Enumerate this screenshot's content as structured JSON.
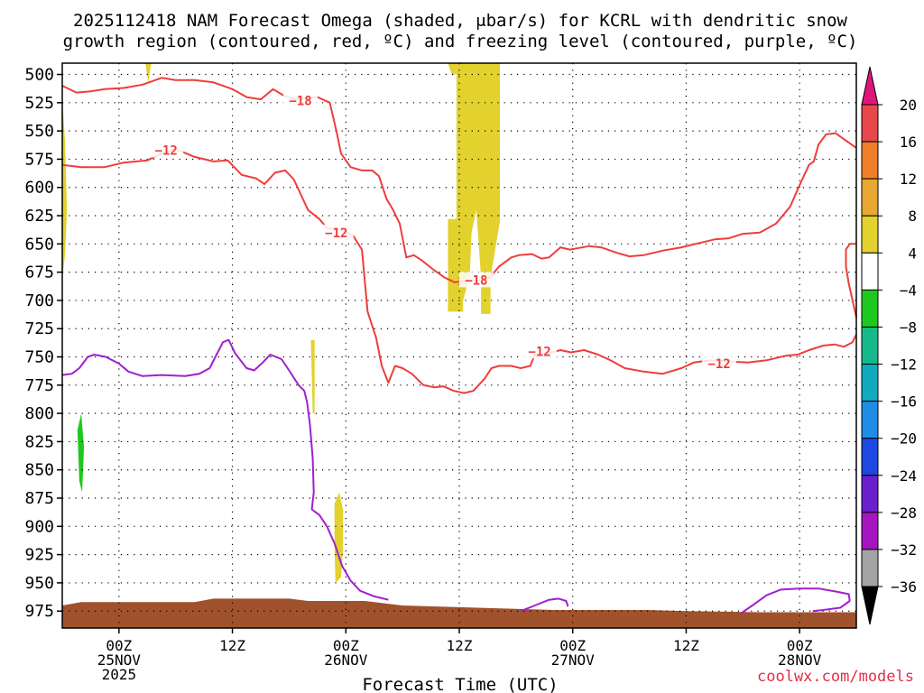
{
  "chart_data": {
    "type": "contour",
    "title_line1": "2025112418 NAM Forecast Omega (shaded, μbar/s) for KCRL with dendritic snow",
    "title_line2": "growth region (contoured, red, ºC) and freezing level (contoured, purple, ºC)",
    "xlabel": "Forecast Time (UTC)",
    "watermark": "coolwx.com/models",
    "x_unit": "hours since 2025112418",
    "xlim": [
      0,
      84
    ],
    "ylim": [
      490,
      990
    ],
    "y_ticks": [
      500,
      525,
      550,
      575,
      600,
      625,
      650,
      675,
      700,
      725,
      750,
      775,
      800,
      825,
      850,
      875,
      900,
      925,
      950,
      975
    ],
    "x_ticks": [
      {
        "x": 6,
        "lines": [
          "00Z",
          "25NOV",
          "2025"
        ]
      },
      {
        "x": 18,
        "lines": [
          "12Z"
        ]
      },
      {
        "x": 30,
        "lines": [
          "00Z",
          "26NOV"
        ]
      },
      {
        "x": 42,
        "lines": [
          "12Z"
        ]
      },
      {
        "x": 54,
        "lines": [
          "00Z",
          "27NOV"
        ]
      },
      {
        "x": 66,
        "lines": [
          "12Z"
        ]
      },
      {
        "x": 78,
        "lines": [
          "00Z",
          "28NOV"
        ]
      }
    ],
    "grid": true,
    "colorbar": {
      "labels": [
        "20",
        "16",
        "12",
        "8",
        "4",
        "−4",
        "−8",
        "−12",
        "−16",
        "−20",
        "−24",
        "−28",
        "−32",
        "−36"
      ],
      "colors": [
        "#e8484b",
        "#f07e2a",
        "#e6a833",
        "#e3d12e",
        "#ffffff",
        "#1fc81f",
        "#17b98b",
        "#12aabf",
        "#1f8ce6",
        "#1f48e0",
        "#6a1fcc",
        "#a515c0",
        "#a3a3a3"
      ],
      "top_arrow_color": "#e0157a",
      "bottom_arrow_color": "#000000"
    },
    "omega_shading": [
      {
        "color": "#e3d12e",
        "value": "4 to 8",
        "polygon": [
          [
            40.8,
            490
          ],
          [
            41.2,
            500
          ],
          [
            41.7,
            500
          ],
          [
            41.7,
            490
          ]
        ]
      },
      {
        "color": "#e3d12e",
        "value": "4 to 8",
        "polygon": [
          [
            41.7,
            490
          ],
          [
            41.7,
            628
          ],
          [
            40.8,
            628
          ],
          [
            40.8,
            710
          ],
          [
            42.4,
            710
          ],
          [
            42.4,
            700
          ],
          [
            42.8,
            688
          ],
          [
            43.1,
            680
          ],
          [
            43.3,
            640
          ],
          [
            43.8,
            620
          ],
          [
            44.3,
            680
          ],
          [
            44.3,
            712
          ],
          [
            45.3,
            712
          ],
          [
            45.3,
            680
          ],
          [
            46.3,
            630
          ],
          [
            46.3,
            490
          ]
        ]
      },
      {
        "color": "#e3d12e",
        "value": "4 to 8",
        "polygon": [
          [
            8.8,
            490
          ],
          [
            9.1,
            508
          ],
          [
            9.4,
            490
          ]
        ]
      },
      {
        "color": "#e3d12e",
        "value": "4 to 8",
        "polygon": [
          [
            0,
            520
          ],
          [
            0.3,
            560
          ],
          [
            0.5,
            620
          ],
          [
            0.3,
            660
          ],
          [
            0,
            680
          ]
        ]
      },
      {
        "color": "#e3d12e",
        "value": "4 to 8",
        "polygon": [
          [
            26.3,
            735
          ],
          [
            26.5,
            800
          ],
          [
            26.7,
            800
          ],
          [
            26.7,
            735
          ]
        ]
      },
      {
        "color": "#e3d12e",
        "value": "4 to 8",
        "polygon": [
          [
            28.8,
            880
          ],
          [
            29.3,
            870
          ],
          [
            29.7,
            885
          ],
          [
            29.7,
            920
          ],
          [
            29.5,
            945
          ],
          [
            28.9,
            950
          ],
          [
            28.8,
            920
          ]
        ]
      },
      {
        "color": "#1fc81f",
        "value": "-8 to -4",
        "polygon": [
          [
            1.6,
            815
          ],
          [
            2.0,
            800
          ],
          [
            2.3,
            830
          ],
          [
            2.1,
            870
          ],
          [
            1.8,
            860
          ]
        ]
      }
    ],
    "terrain": {
      "color": "#a0522d",
      "value": "below ground",
      "top_profile": [
        [
          0,
          970
        ],
        [
          2,
          967
        ],
        [
          14,
          967
        ],
        [
          16,
          964
        ],
        [
          24,
          964
        ],
        [
          26,
          966
        ],
        [
          32,
          966
        ],
        [
          36,
          970
        ],
        [
          44,
          972
        ],
        [
          52,
          974
        ],
        [
          56,
          974
        ],
        [
          62,
          974
        ],
        [
          66,
          975
        ],
        [
          74,
          976
        ],
        [
          84,
          976
        ]
      ]
    },
    "contours": [
      {
        "color": "#ee3d3d",
        "value": "-18 C",
        "label": "−18",
        "label_at": [
          25.2,
          523
        ],
        "points": [
          [
            0,
            510
          ],
          [
            1.5,
            516
          ],
          [
            3,
            515
          ],
          [
            4.5,
            513
          ],
          [
            6.5,
            512
          ],
          [
            8.5,
            509
          ],
          [
            10.5,
            503
          ],
          [
            12,
            505
          ],
          [
            14,
            505
          ],
          [
            16,
            507
          ],
          [
            18,
            513
          ],
          [
            19.5,
            520
          ],
          [
            21,
            522
          ],
          [
            22.3,
            513
          ],
          [
            23.5,
            519
          ],
          [
            24.5,
            522
          ],
          [
            27,
            520
          ],
          [
            28.3,
            525
          ],
          [
            29,
            550
          ],
          [
            29.5,
            570
          ],
          [
            30.5,
            582
          ],
          [
            31.7,
            585
          ],
          [
            32.8,
            585
          ],
          [
            33.5,
            590
          ],
          [
            34.3,
            610
          ],
          [
            35,
            620
          ],
          [
            35.7,
            632
          ],
          [
            36.4,
            662
          ],
          [
            37.2,
            660
          ],
          [
            38.1,
            665
          ],
          [
            39.3,
            673
          ],
          [
            40.5,
            680
          ],
          [
            41.5,
            684
          ],
          [
            42.3,
            683
          ],
          [
            43.5,
            683
          ],
          [
            44.5,
            682
          ],
          [
            45.2,
            680
          ],
          [
            46.2,
            670
          ],
          [
            47.5,
            662
          ],
          [
            48.3,
            660
          ],
          [
            49.7,
            659
          ],
          [
            50.7,
            663
          ],
          [
            51.5,
            662
          ],
          [
            52.7,
            653
          ],
          [
            53.7,
            655
          ],
          [
            55.7,
            652
          ],
          [
            57,
            653
          ],
          [
            58.7,
            658
          ],
          [
            60,
            661
          ],
          [
            61.5,
            660
          ],
          [
            63.5,
            656
          ],
          [
            65.5,
            653
          ],
          [
            67,
            650
          ],
          [
            69,
            646
          ],
          [
            70.5,
            645
          ],
          [
            72,
            641
          ],
          [
            73.8,
            640
          ],
          [
            75.5,
            632
          ],
          [
            77,
            617
          ],
          [
            78,
            598
          ],
          [
            79,
            580
          ],
          [
            79.5,
            577
          ],
          [
            80,
            562
          ],
          [
            80.8,
            553
          ],
          [
            81.8,
            552
          ],
          [
            82.8,
            558
          ],
          [
            84,
            565
          ]
        ]
      },
      {
        "color": "#ee3d3d",
        "value": "-12 C",
        "label": "−12",
        "label_at": [
          11,
          567
        ],
        "points": [
          [
            0,
            580
          ],
          [
            2,
            582
          ],
          [
            4.5,
            582
          ],
          [
            6.5,
            578
          ],
          [
            9,
            576
          ],
          [
            10.5,
            570
          ],
          [
            12,
            566
          ],
          [
            14,
            573
          ],
          [
            16,
            577
          ],
          [
            17.5,
            576
          ],
          [
            19,
            589
          ],
          [
            20.5,
            592
          ],
          [
            21.4,
            597
          ],
          [
            22.5,
            587
          ],
          [
            23.6,
            585
          ],
          [
            24.5,
            593
          ],
          [
            26,
            620
          ],
          [
            27.2,
            628
          ],
          [
            28,
            636
          ],
          [
            29.8,
            638
          ],
          [
            30.8,
            643
          ],
          [
            31.7,
            655
          ],
          [
            32.3,
            710
          ],
          [
            33.2,
            733
          ],
          [
            33.8,
            758
          ],
          [
            34.5,
            773
          ],
          [
            35.2,
            758
          ],
          [
            36,
            760
          ],
          [
            37,
            765
          ],
          [
            38.2,
            775
          ],
          [
            39.4,
            777
          ],
          [
            40.3,
            776
          ],
          [
            41.4,
            780
          ],
          [
            42.5,
            782
          ],
          [
            43.5,
            780
          ],
          [
            44.7,
            769
          ],
          [
            45.4,
            760
          ],
          [
            46.2,
            758
          ],
          [
            47.5,
            758
          ],
          [
            48.5,
            760
          ],
          [
            49.5,
            758
          ],
          [
            50,
            748
          ],
          [
            51.3,
            747
          ],
          [
            52.7,
            744
          ],
          [
            53.8,
            746
          ],
          [
            55.2,
            744
          ],
          [
            56.7,
            748
          ],
          [
            58,
            753
          ],
          [
            59.5,
            760
          ],
          [
            61.5,
            763
          ],
          [
            63.5,
            765
          ],
          [
            65.5,
            760
          ],
          [
            66.8,
            755
          ],
          [
            68.5,
            753
          ],
          [
            70.5,
            754
          ],
          [
            72.5,
            755
          ],
          [
            74.5,
            753
          ],
          [
            76.5,
            749
          ],
          [
            77.8,
            748
          ],
          [
            79,
            744
          ],
          [
            80.5,
            740
          ],
          [
            81.7,
            739
          ],
          [
            82.7,
            741
          ],
          [
            83.6,
            737
          ],
          [
            84,
            730
          ]
        ]
      },
      {
        "color": "#ee3d3d",
        "value": "-12 C",
        "label": "−12",
        "label_at": [
          29,
          640
        ],
        "points": [
          [
            84,
            715
          ],
          [
            83.6,
            700
          ],
          [
            83.2,
            685
          ],
          [
            82.9,
            670
          ],
          [
            82.9,
            655
          ],
          [
            83.3,
            650
          ],
          [
            84,
            650
          ]
        ]
      },
      {
        "color": "#a020d0",
        "value": "0 C",
        "label": "",
        "points": [
          [
            0,
            766
          ],
          [
            1,
            765
          ],
          [
            1.8,
            760
          ],
          [
            2.7,
            750
          ],
          [
            3.4,
            748
          ],
          [
            4.6,
            750
          ],
          [
            6,
            756
          ],
          [
            7,
            763
          ],
          [
            8.5,
            767
          ],
          [
            10.5,
            766
          ],
          [
            13,
            767
          ],
          [
            14.5,
            765
          ],
          [
            15.6,
            760
          ],
          [
            16.2,
            750
          ],
          [
            17,
            737
          ],
          [
            17.6,
            735
          ],
          [
            18.3,
            747
          ],
          [
            19.5,
            760
          ],
          [
            20.3,
            762
          ],
          [
            21.2,
            755
          ],
          [
            22,
            748
          ],
          [
            23.2,
            752
          ],
          [
            24,
            762
          ],
          [
            25,
            775
          ],
          [
            25.6,
            780
          ],
          [
            25.9,
            790
          ],
          [
            26.2,
            810
          ],
          [
            26.5,
            840
          ],
          [
            26.6,
            870
          ],
          [
            26.4,
            885
          ],
          [
            27.2,
            890
          ],
          [
            28,
            900
          ],
          [
            28.8,
            915
          ],
          [
            29.6,
            935
          ],
          [
            30.5,
            948
          ],
          [
            31.5,
            957
          ],
          [
            33,
            962
          ],
          [
            34.5,
            965
          ]
        ]
      },
      {
        "color": "#a020d0",
        "value": "0 C",
        "label": "",
        "points": [
          [
            48.5,
            975
          ],
          [
            50,
            970
          ],
          [
            51.5,
            965
          ],
          [
            52.5,
            964
          ],
          [
            53.3,
            966
          ],
          [
            53.5,
            971
          ]
        ]
      },
      {
        "color": "#a020d0",
        "value": "0 C",
        "label": "",
        "points": [
          [
            71.8,
            977
          ],
          [
            73,
            970
          ],
          [
            74.5,
            961
          ],
          [
            76,
            956
          ],
          [
            78,
            955
          ],
          [
            80,
            955
          ],
          [
            82,
            958
          ],
          [
            83.2,
            960
          ],
          [
            83.3,
            966
          ],
          [
            82.3,
            972
          ],
          [
            80.5,
            974
          ],
          [
            79.4,
            975
          ]
        ]
      }
    ]
  }
}
